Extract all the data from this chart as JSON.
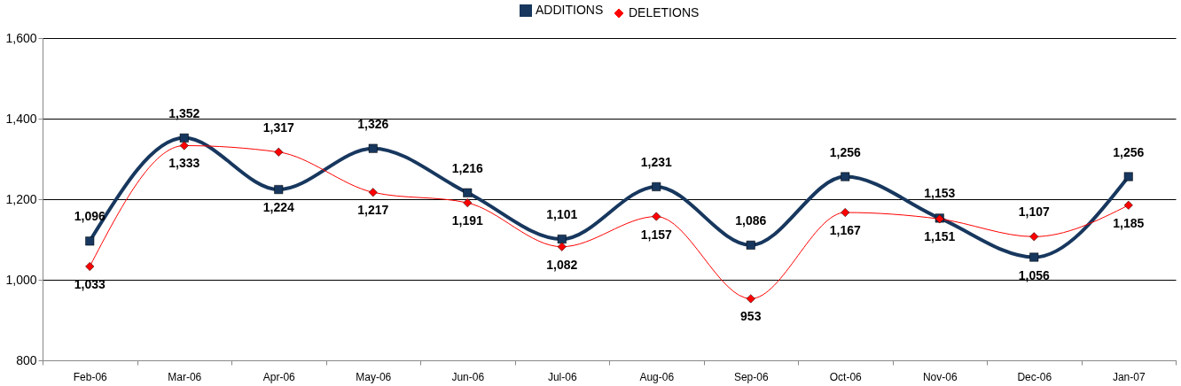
{
  "chart_data": {
    "type": "line",
    "categories": [
      "Feb-06",
      "Mar-06",
      "Apr-06",
      "May-06",
      "Jun-06",
      "Jul-06",
      "Aug-06",
      "Sep-06",
      "Oct-06",
      "Nov-06",
      "Dec-06",
      "Jan-07"
    ],
    "series": [
      {
        "name": "ADDITIONS",
        "color": "#17375e",
        "marker": "square",
        "values": [
          1096,
          1352,
          1224,
          1326,
          1216,
          1101,
          1231,
          1086,
          1256,
          1153,
          1056,
          1256
        ],
        "value_labels": [
          "1,096",
          "1,352",
          "1,224",
          "1,326",
          "1,216",
          "1,101",
          "1,231",
          "1,086",
          "1,256",
          "1,153",
          "1,056",
          "1,256"
        ]
      },
      {
        "name": "DELETIONS",
        "color": "#ff0000",
        "marker": "diamond",
        "values": [
          1033,
          1333,
          1317,
          1217,
          1191,
          1082,
          1157,
          953,
          1167,
          1151,
          1107,
          1185
        ],
        "value_labels": [
          "1,033",
          "1,333",
          "1,317",
          "1,217",
          "1,191",
          "1,082",
          "1,157",
          "953",
          "1,167",
          "1,151",
          "1,107",
          "1,185"
        ]
      }
    ],
    "ylim": [
      800,
      1600
    ],
    "yticks": [
      {
        "value": 800,
        "label": "800"
      },
      {
        "value": 1000,
        "label": "1,000"
      },
      {
        "value": 1200,
        "label": "1,200"
      },
      {
        "value": 1400,
        "label": "1,400"
      },
      {
        "value": 1600,
        "label": "1,600"
      }
    ],
    "grid": "y",
    "legend": "top"
  }
}
